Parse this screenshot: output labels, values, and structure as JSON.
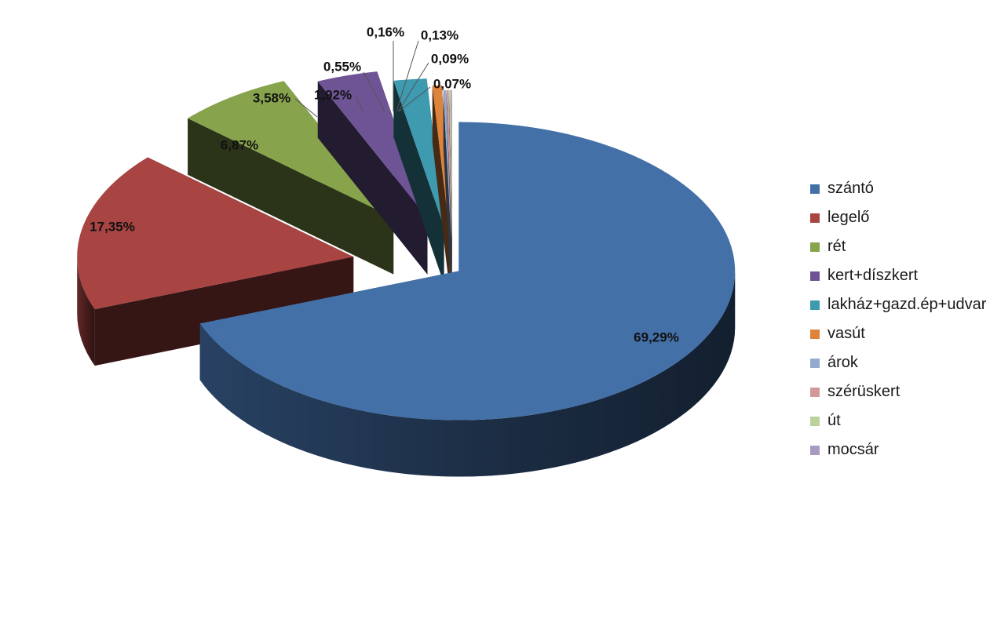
{
  "chart_data": {
    "type": "pie",
    "style": "3d-exploded",
    "title": "",
    "legend_position": "right",
    "slices": [
      {
        "label": "szántó",
        "value": 69.29,
        "value_label": "69,29%",
        "color": "#4470A8"
      },
      {
        "label": "legelő",
        "value": 17.35,
        "value_label": "17,35%",
        "color": "#A84442"
      },
      {
        "label": "rét",
        "value": 6.87,
        "value_label": "6,87%",
        "color": "#87A44C"
      },
      {
        "label": "kert+díszkert",
        "value": 3.58,
        "value_label": "3,58%",
        "color": "#6E5495"
      },
      {
        "label": "lakház+gazd.ép+udvar",
        "value": 1.92,
        "value_label": "1,92%",
        "color": "#3D9AAF"
      },
      {
        "label": "vasút",
        "value": 0.55,
        "value_label": "0,55%",
        "color": "#DE843A"
      },
      {
        "label": "árok",
        "value": 0.16,
        "value_label": "0,16%",
        "color": "#94AACF"
      },
      {
        "label": "szérüskert",
        "value": 0.13,
        "value_label": "0,13%",
        "color": "#D3989A"
      },
      {
        "label": "út",
        "value": 0.09,
        "value_label": "0,09%",
        "color": "#BBD39A"
      },
      {
        "label": "mocsár",
        "value": 0.07,
        "value_label": "0,07%",
        "color": "#A99ABF"
      }
    ]
  }
}
